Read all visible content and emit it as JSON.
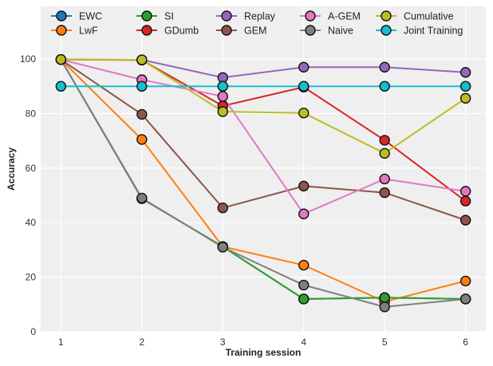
{
  "chart_data": {
    "type": "line",
    "title": "",
    "xlabel": "Training session",
    "ylabel": "Accuracy",
    "x": [
      1,
      2,
      3,
      4,
      5,
      6
    ],
    "xticks": [
      "1",
      "2",
      "3",
      "4",
      "5",
      "6"
    ],
    "yticks": [
      "0",
      "20",
      "40",
      "60",
      "80",
      "100"
    ],
    "ylim": [
      0,
      117
    ],
    "xlim": [
      0.75,
      6.25
    ],
    "grid": true,
    "legend_position": "top",
    "series": [
      {
        "name": "EWC",
        "color": "#1f77b4",
        "values": [
          99.8,
          48.8,
          31.2,
          12.0,
          12.5,
          12.0
        ]
      },
      {
        "name": "LwF",
        "color": "#ff7f0e",
        "values": [
          99.8,
          70.5,
          31.2,
          24.4,
          11.0,
          18.6
        ]
      },
      {
        "name": "SI",
        "color": "#2ca02c",
        "values": [
          99.8,
          48.8,
          31.2,
          12.0,
          12.5,
          12.0
        ]
      },
      {
        "name": "GDumb",
        "color": "#d62728",
        "values": [
          99.8,
          99.6,
          82.8,
          89.7,
          70.2,
          47.9
        ]
      },
      {
        "name": "Replay",
        "color": "#9467bd",
        "values": [
          99.8,
          99.7,
          93.2,
          97.0,
          97.0,
          95.1
        ]
      },
      {
        "name": "GEM",
        "color": "#8c564b",
        "values": [
          99.8,
          79.7,
          45.4,
          53.4,
          51.0,
          40.9
        ]
      },
      {
        "name": "A-GEM",
        "color": "#e377c2",
        "values": [
          99.8,
          92.4,
          86.3,
          43.2,
          56.0,
          51.5
        ]
      },
      {
        "name": "Naive",
        "color": "#7f7f7f",
        "values": [
          99.8,
          49.0,
          31.0,
          17.1,
          9.1,
          12.0
        ]
      },
      {
        "name": "Cumulative",
        "color": "#bcbd22",
        "values": [
          99.8,
          99.7,
          80.7,
          80.2,
          65.4,
          85.6
        ]
      },
      {
        "name": "Joint Training",
        "color": "#17becf",
        "values": [
          90.0,
          90.0,
          90.0,
          90.0,
          90.0,
          90.0
        ]
      }
    ],
    "legend_order": [
      "EWC",
      "LwF",
      "SI",
      "GDumb",
      "Replay",
      "GEM",
      "A-GEM",
      "Naive",
      "Cumulative",
      "Joint Training"
    ]
  }
}
